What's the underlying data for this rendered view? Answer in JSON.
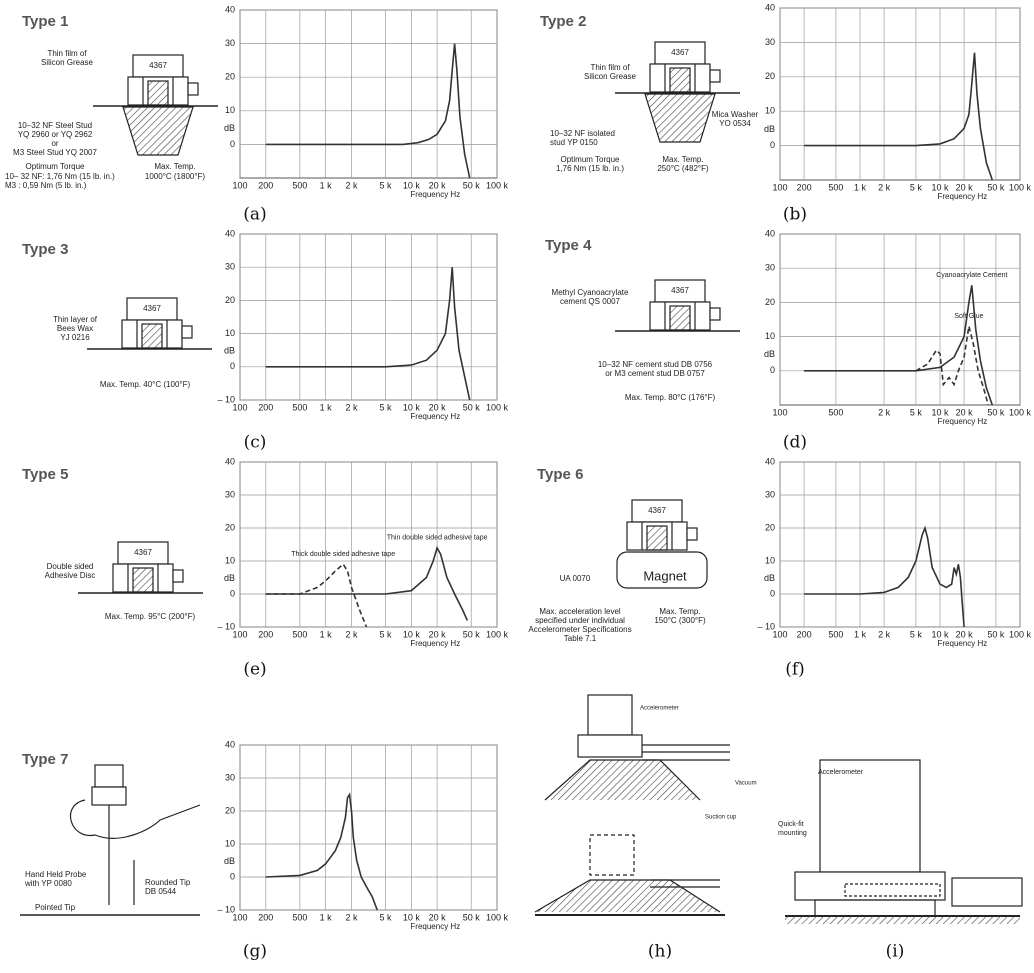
{
  "chart_data": [
    {
      "type": "line",
      "caption": "(a)",
      "xlabel": "Frequency Hz",
      "ylabel": "dB",
      "xscale": "log",
      "grid": true,
      "color": "#333",
      "xlim": [
        100,
        100000
      ],
      "ylim": [
        -10,
        40
      ],
      "xticks": [
        {
          "value": 100,
          "label": "100"
        },
        {
          "value": 200,
          "label": "200"
        },
        {
          "value": 500,
          "label": "500"
        },
        {
          "value": 1000,
          "label": "1 k"
        },
        {
          "value": 2000,
          "label": "2 k"
        },
        {
          "value": 5000,
          "label": "5 k"
        },
        {
          "value": 10000,
          "label": "10 k"
        },
        {
          "value": 20000,
          "label": "20 k"
        },
        {
          "value": 50000,
          "label": "50 k"
        },
        {
          "value": 100000,
          "label": "100 k"
        }
      ],
      "yticks": [
        0,
        10,
        20,
        30,
        40
      ],
      "series": [
        {
          "x": [
            200,
            1000,
            5000,
            8000,
            12000,
            16000,
            20000,
            25000,
            28000,
            30000,
            32000,
            34000,
            37000,
            42000,
            48000
          ],
          "values": [
            0,
            0,
            0,
            0,
            0.5,
            1.5,
            3,
            7,
            13,
            22,
            30,
            22,
            8,
            -3,
            -10
          ]
        }
      ]
    },
    {
      "type": "line",
      "caption": "(b)",
      "xlabel": "Frequency Hz",
      "ylabel": "dB",
      "xscale": "log",
      "grid": true,
      "color": "#333",
      "xlim": [
        100,
        100000
      ],
      "ylim": [
        -10,
        40
      ],
      "xticks": [
        {
          "value": 100,
          "label": "100"
        },
        {
          "value": 200,
          "label": "200"
        },
        {
          "value": 500,
          "label": "500"
        },
        {
          "value": 1000,
          "label": "1 k"
        },
        {
          "value": 2000,
          "label": "2 k"
        },
        {
          "value": 5000,
          "label": "5 k"
        },
        {
          "value": 10000,
          "label": "10 k"
        },
        {
          "value": 20000,
          "label": "20 k"
        },
        {
          "value": 50000,
          "label": "50 k"
        },
        {
          "value": 100000,
          "label": "100 k"
        }
      ],
      "yticks": [
        0,
        10,
        20,
        30,
        40
      ],
      "series": [
        {
          "x": [
            200,
            1000,
            5000,
            10000,
            15000,
            20000,
            23000,
            25000,
            27000,
            29000,
            32000,
            38000,
            45000
          ],
          "values": [
            0,
            0,
            0,
            0.5,
            2,
            5,
            9,
            18,
            27,
            15,
            5,
            -5,
            -10
          ]
        }
      ]
    },
    {
      "type": "line",
      "caption": "(c)",
      "xlabel": "Frequency Hz",
      "ylabel": "dB",
      "xscale": "log",
      "grid": true,
      "color": "#333",
      "xlim": [
        100,
        100000
      ],
      "ylim": [
        -10,
        40
      ],
      "xticks": [
        {
          "value": 100,
          "label": "100"
        },
        {
          "value": 200,
          "label": "200"
        },
        {
          "value": 500,
          "label": "500"
        },
        {
          "value": 1000,
          "label": "1 k"
        },
        {
          "value": 2000,
          "label": "2 k"
        },
        {
          "value": 5000,
          "label": "5 k"
        },
        {
          "value": 10000,
          "label": "10 k"
        },
        {
          "value": 20000,
          "label": "20 k"
        },
        {
          "value": 50000,
          "label": "50 k"
        },
        {
          "value": 100000,
          "label": "100 k"
        }
      ],
      "yticks": [
        {
          "value": -10,
          "label": "– 10"
        },
        0,
        10,
        20,
        30,
        40
      ],
      "series": [
        {
          "x": [
            200,
            1000,
            5000,
            10000,
            15000,
            20000,
            25000,
            28000,
            30000,
            32000,
            36000,
            42000,
            48000
          ],
          "values": [
            0,
            0,
            0,
            0.5,
            2,
            5,
            10,
            20,
            30,
            18,
            5,
            -3,
            -10
          ]
        }
      ]
    },
    {
      "type": "line",
      "caption": "(d)",
      "xlabel": "Frequency Hz",
      "ylabel": "dB",
      "xscale": "log",
      "grid": true,
      "color": "#333",
      "xlim": [
        100,
        100000
      ],
      "ylim": [
        -10,
        40
      ],
      "xticks": [
        {
          "value": 100,
          "label": "100"
        },
        {
          "value": 500,
          "label": "500"
        },
        {
          "value": 2000,
          "label": "2 k"
        },
        {
          "value": 5000,
          "label": "5 k"
        },
        {
          "value": 10000,
          "label": "10 k"
        },
        {
          "value": 20000,
          "label": "20 k"
        },
        {
          "value": 50000,
          "label": "50 k"
        },
        {
          "value": 100000,
          "label": "100 k"
        }
      ],
      "yticks": [
        0,
        10,
        20,
        30,
        40
      ],
      "series": [
        {
          "name": "Cyanoacrylate Cement",
          "x": [
            200,
            1000,
            5000,
            10000,
            15000,
            20000,
            23000,
            25000,
            28000,
            32000,
            38000,
            45000
          ],
          "values": [
            0,
            0,
            0,
            1,
            4,
            10,
            20,
            25,
            12,
            3,
            -5,
            -10
          ]
        },
        {
          "name": "Soft Glue",
          "dashed": true,
          "x": [
            5000,
            7000,
            9000,
            10000,
            11000,
            13000,
            15000,
            17000,
            20000,
            23000,
            26000,
            30000,
            35000,
            40000
          ],
          "values": [
            0,
            2,
            6,
            5,
            -4,
            -2,
            -4,
            0,
            4,
            13,
            8,
            0,
            -5,
            -10
          ]
        }
      ]
    },
    {
      "type": "line",
      "caption": "(e)",
      "xlabel": "Frequency Hz",
      "ylabel": "dB",
      "xscale": "log",
      "grid": true,
      "color": "#333",
      "xlim": [
        100,
        100000
      ],
      "ylim": [
        -10,
        40
      ],
      "xticks": [
        {
          "value": 100,
          "label": "100"
        },
        {
          "value": 200,
          "label": "200"
        },
        {
          "value": 500,
          "label": "500"
        },
        {
          "value": 1000,
          "label": "1 k"
        },
        {
          "value": 2000,
          "label": "2 k"
        },
        {
          "value": 5000,
          "label": "5 k"
        },
        {
          "value": 10000,
          "label": "10 k"
        },
        {
          "value": 20000,
          "label": "20 k"
        },
        {
          "value": 50000,
          "label": "50 k"
        },
        {
          "value": 100000,
          "label": "100 k"
        }
      ],
      "yticks": [
        {
          "value": -10,
          "label": "– 10"
        },
        0,
        10,
        20,
        30,
        40
      ],
      "series": [
        {
          "name": "Thick double sided adhesive tape",
          "dashed": true,
          "x": [
            200,
            500,
            800,
            1000,
            1300,
            1600,
            1800,
            2000,
            2500,
            3000
          ],
          "values": [
            0,
            0,
            2,
            4,
            7,
            9,
            7,
            2,
            -5,
            -10
          ]
        },
        {
          "name": "Thin double sided adhesive tape",
          "x": [
            200,
            1000,
            5000,
            10000,
            15000,
            18000,
            20000,
            22000,
            26000,
            32000,
            40000,
            45000
          ],
          "values": [
            0,
            0,
            0,
            1,
            5,
            10,
            14,
            12,
            5,
            0,
            -5,
            -8
          ]
        }
      ]
    },
    {
      "type": "line",
      "caption": "(f)",
      "xlabel": "Frequency Hz",
      "ylabel": "dB",
      "xscale": "log",
      "grid": true,
      "color": "#333",
      "xlim": [
        100,
        100000
      ],
      "ylim": [
        -10,
        40
      ],
      "xticks": [
        {
          "value": 100,
          "label": "100"
        },
        {
          "value": 200,
          "label": "200"
        },
        {
          "value": 500,
          "label": "500"
        },
        {
          "value": 1000,
          "label": "1 k"
        },
        {
          "value": 2000,
          "label": "2 k"
        },
        {
          "value": 5000,
          "label": "5 k"
        },
        {
          "value": 10000,
          "label": "10 k"
        },
        {
          "value": 20000,
          "label": "20 k"
        },
        {
          "value": 50000,
          "label": "50 k"
        },
        {
          "value": 100000,
          "label": "100 k"
        }
      ],
      "yticks": [
        {
          "value": -10,
          "label": "– 10"
        },
        0,
        10,
        20,
        30,
        40
      ],
      "series": [
        {
          "x": [
            200,
            1000,
            2000,
            3000,
            4000,
            5000,
            6000,
            6500,
            7000,
            8000,
            10000,
            12000,
            14000,
            15000,
            16000,
            17000,
            18000,
            19000,
            20000
          ],
          "values": [
            0,
            0,
            0.5,
            2,
            5,
            10,
            18,
            20,
            17,
            8,
            3,
            2,
            3,
            8,
            6,
            9,
            5,
            -3,
            -10
          ]
        }
      ]
    },
    {
      "type": "line",
      "caption": "(g)",
      "xlabel": "Frequency Hz",
      "ylabel": "dB",
      "xscale": "log",
      "grid": true,
      "color": "#333",
      "xlim": [
        100,
        100000
      ],
      "ylim": [
        -10,
        40
      ],
      "xticks": [
        {
          "value": 100,
          "label": "100"
        },
        {
          "value": 200,
          "label": "200"
        },
        {
          "value": 500,
          "label": "500"
        },
        {
          "value": 1000,
          "label": "1 k"
        },
        {
          "value": 2000,
          "label": "2 k"
        },
        {
          "value": 5000,
          "label": "5 k"
        },
        {
          "value": 10000,
          "label": "10 k"
        },
        {
          "value": 20000,
          "label": "20 k"
        },
        {
          "value": 50000,
          "label": "50 k"
        },
        {
          "value": 100000,
          "label": "100 k"
        }
      ],
      "yticks": [
        {
          "value": -10,
          "label": "– 10"
        },
        0,
        10,
        20,
        30,
        40
      ],
      "series": [
        {
          "x": [
            200,
            500,
            800,
            1000,
            1300,
            1500,
            1700,
            1800,
            1900,
            2000,
            2100,
            2300,
            2600,
            3000,
            3500,
            4000
          ],
          "values": [
            0,
            0.5,
            2,
            4,
            8,
            12,
            18,
            24,
            25,
            20,
            12,
            5,
            0,
            -3,
            -6,
            -10
          ]
        }
      ]
    }
  ],
  "mountings": [
    {
      "title": "Type 1",
      "sensor": "4367",
      "notes": [
        "Thin film of",
        "Silicon Grease",
        "10–32 NF Steel Stud",
        "YQ 2960 or YQ 2962",
        "or",
        "M3 Steel Stud YQ 2007",
        "Optimum Torque",
        "10– 32 NF: 1,76 Nm (15 lb. in.)",
        "M3        : 0,59 Nm (5 lb. in.)",
        "Max. Temp.",
        "1000°C (1800°F)"
      ]
    },
    {
      "title": "Type 2",
      "sensor": "4367",
      "notes": [
        "Thin film of",
        "Silicon Grease",
        "Mica Washer",
        "YO 0534",
        "10–32 NF isolated",
        "stud YP 0150",
        "Optimum Torque",
        "1,76 Nm (15 lb. in.)",
        "Max. Temp.",
        "250°C (482°F)"
      ]
    },
    {
      "title": "Type 3",
      "sensor": "4367",
      "notes": [
        "Thin layer of",
        "Bees Wax",
        "YJ 0216",
        "Max. Temp. 40°C (100°F)"
      ]
    },
    {
      "title": "Type 4",
      "sensor": "4367",
      "notes": [
        "Methyl Cyanoacrylate",
        "cement QS 0007",
        "10–32 NF cement stud DB 0756",
        "or M3 cement stud DB 0757",
        "Max. Temp. 80°C (176°F)"
      ]
    },
    {
      "title": "Type 5",
      "sensor": "4367",
      "notes": [
        "Double sided",
        "Adhesive Disc",
        "Max. Temp. 95°C (200°F)"
      ]
    },
    {
      "title": "Type 6",
      "sensor": "4367",
      "notes": [
        "Magnet",
        "UA 0070",
        "Max. acceleration level",
        "specified under individual",
        "Accelerometer Specifications",
        "Table 7.1",
        "Max. Temp.",
        "150°C (300°F)"
      ]
    },
    {
      "title": "Type 7",
      "notes": [
        "Hand Held Probe",
        "with YP 0080",
        "Rounded Tip",
        "DB 0544",
        "Pointed Tip"
      ]
    }
  ],
  "diagrams": [
    {
      "caption": "(h)",
      "labels": [
        "Accelerometer",
        "Vacuum",
        "Suction cup"
      ]
    },
    {
      "caption": "(i)",
      "labels": [
        "Accelerometer",
        "Quick-fit",
        "mounting"
      ]
    }
  ]
}
